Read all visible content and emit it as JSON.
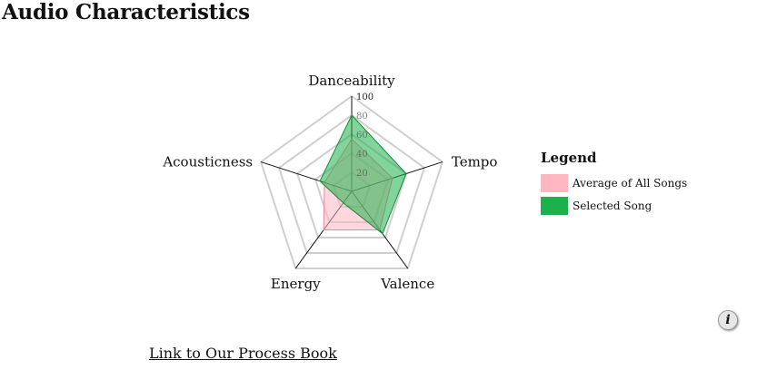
{
  "page": {
    "title": "Audio Characteristics",
    "process_link_label": "Link to Our Process Book",
    "info_icon": "info-icon",
    "info_glyph": "i"
  },
  "legend": {
    "title": "Legend",
    "items": [
      {
        "label": "Average of All Songs",
        "color": "#ffb6c1"
      },
      {
        "label": "Selected Song",
        "color": "#1db04b"
      }
    ]
  },
  "chart_data": {
    "type": "radar",
    "axes": [
      "Danceability",
      "Tempo",
      "Valence",
      "Energy",
      "Acousticness"
    ],
    "range": [
      0,
      100
    ],
    "ticks": [
      20,
      40,
      60,
      80,
      100
    ],
    "grid": true,
    "legend_position": "right",
    "series": [
      {
        "name": "Average of All Songs",
        "color": "#ffb6c1",
        "values": [
          55,
          45,
          50,
          50,
          30
        ]
      },
      {
        "name": "Selected Song",
        "color": "#1db04b",
        "values": [
          80,
          60,
          55,
          15,
          35
        ]
      }
    ]
  }
}
